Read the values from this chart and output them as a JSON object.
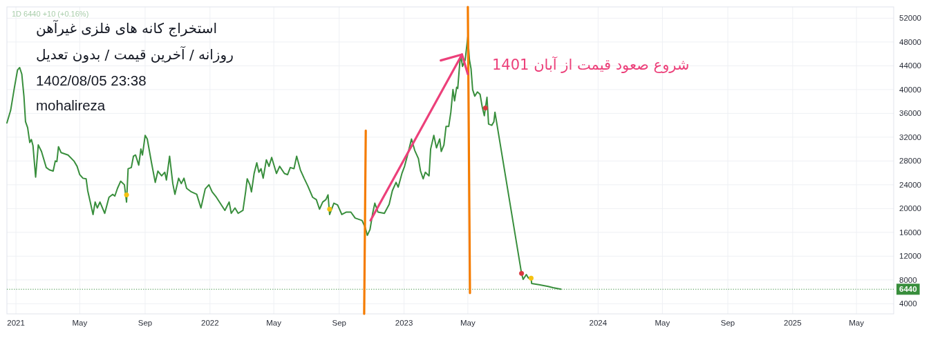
{
  "chart_data": {
    "type": "line",
    "title": "استخراج کانه های فلزی غیرآهن",
    "subtitle": "روزانه / آخرین قیمت / بدون تعدیل",
    "annotations": [
      "1402/08/05 23:38",
      "mohalireza",
      "شروع صعود قیمت از آبان 1401",
      "1D 6440 +10 (+0.16%)"
    ],
    "series": [
      {
        "color": "#388e3c",
        "x": [
          "2020-12-15",
          "2020-12-22",
          "2020-12-29",
          "2021-01-04",
          "2021-01-08",
          "2021-01-12",
          "2021-01-16",
          "2021-01-19",
          "2021-01-23",
          "2021-01-27",
          "2021-01-30",
          "2021-02-02",
          "2021-02-07",
          "2021-02-12",
          "2021-02-18",
          "2021-02-27",
          "2021-03-05",
          "2021-03-12",
          "2021-03-16",
          "2021-03-19",
          "2021-03-22",
          "2021-03-27",
          "2021-04-09",
          "2021-04-20",
          "2021-04-26",
          "2021-05-01",
          "2021-05-07",
          "2021-05-13",
          "2021-05-16",
          "2021-05-26",
          "2021-05-30",
          "2021-06-03",
          "2021-06-08",
          "2021-06-17",
          "2021-06-25",
          "2021-07-02",
          "2021-07-06",
          "2021-07-11",
          "2021-07-17",
          "2021-07-24",
          "2021-07-28",
          "2021-07-31",
          "2021-08-06",
          "2021-08-10",
          "2021-08-14",
          "2021-08-20",
          "2021-08-24",
          "2021-08-27",
          "2021-09-01",
          "2021-09-05",
          "2021-09-13",
          "2021-09-20",
          "2021-09-25",
          "2021-10-02",
          "2021-10-08",
          "2021-10-11",
          "2021-10-17",
          "2021-10-23",
          "2021-10-27",
          "2021-11-03",
          "2021-11-08",
          "2021-11-13",
          "2021-11-18",
          "2021-11-27",
          "2021-12-07",
          "2021-12-15",
          "2021-12-23",
          "2021-12-30",
          "2022-01-05",
          "2022-01-13",
          "2022-01-29",
          "2022-02-06",
          "2022-02-10",
          "2022-02-17",
          "2022-02-23",
          "2022-03-04",
          "2022-03-09",
          "2022-03-12",
          "2022-03-17",
          "2022-03-20",
          "2022-03-25",
          "2022-03-30",
          "2022-04-03",
          "2022-04-07",
          "2022-04-11",
          "2022-04-17",
          "2022-04-22",
          "2022-04-27",
          "2022-05-06",
          "2022-05-12",
          "2022-05-21",
          "2022-05-27",
          "2022-06-01",
          "2022-06-08",
          "2022-06-13",
          "2022-06-20",
          "2022-06-27",
          "2022-07-04",
          "2022-07-13",
          "2022-07-20",
          "2022-07-26",
          "2022-08-01",
          "2022-08-07",
          "2022-08-11",
          "2022-08-14",
          "2022-08-22",
          "2022-08-29",
          "2022-09-06",
          "2022-09-14",
          "2022-09-23",
          "2022-10-01",
          "2022-10-14",
          "2022-10-20",
          "2022-10-24",
          "2022-10-29",
          "2022-11-03",
          "2022-11-07",
          "2022-11-13",
          "2022-11-25",
          "2022-12-04",
          "2022-12-10",
          "2022-12-17",
          "2022-12-21",
          "2022-12-28",
          "2023-01-02",
          "2023-01-07",
          "2023-01-15",
          "2023-01-21",
          "2023-01-28",
          "2023-02-01",
          "2023-02-06",
          "2023-02-10",
          "2023-02-17",
          "2023-02-20",
          "2023-02-26",
          "2023-03-03",
          "2023-03-09",
          "2023-03-12",
          "2023-03-17",
          "2023-03-21",
          "2023-03-26",
          "2023-03-30",
          "2023-04-03",
          "2023-04-06",
          "2023-04-10",
          "2023-04-12",
          "2023-04-16",
          "2023-04-18",
          "2023-04-21",
          "2023-04-26",
          "2023-05-01",
          "2023-05-04",
          "2023-05-07",
          "2023-05-10",
          "2023-05-14",
          "2023-05-19",
          "2023-05-24",
          "2023-05-28",
          "2023-06-01",
          "2023-06-03",
          "2023-06-06",
          "2023-06-09",
          "2023-06-15",
          "2023-06-19",
          "2023-06-21",
          "2023-08-10",
          "2023-08-13",
          "2023-08-19",
          "2023-08-23",
          "2023-08-28",
          "2023-08-29",
          "2023-09-12",
          "2023-09-29",
          "2023-10-08",
          "2023-10-23"
        ],
        "values": [
          34400,
          36500,
          40300,
          43300,
          43700,
          42600,
          38900,
          34600,
          33600,
          31100,
          31600,
          30600,
          25300,
          30700,
          29600,
          26900,
          26500,
          26300,
          28000,
          27900,
          30400,
          29400,
          29000,
          28000,
          27100,
          25700,
          25100,
          25000,
          23000,
          19000,
          21100,
          20100,
          21100,
          19200,
          21900,
          22400,
          22100,
          23400,
          24600,
          24000,
          21100,
          26700,
          26900,
          28800,
          29000,
          27300,
          30000,
          29000,
          32300,
          31700,
          27700,
          24400,
          26300,
          25500,
          26100,
          24800,
          28800,
          24200,
          22400,
          25100,
          24200,
          25100,
          23400,
          22800,
          22400,
          20100,
          23300,
          24000,
          22800,
          21900,
          19700,
          21100,
          19200,
          20100,
          19200,
          19700,
          22800,
          25000,
          24000,
          22800,
          25900,
          27700,
          26100,
          26700,
          25100,
          28200,
          27100,
          28600,
          25900,
          27100,
          25900,
          25700,
          26900,
          26700,
          28800,
          26500,
          25100,
          23800,
          21900,
          21500,
          19900,
          21100,
          21500,
          22300,
          19000,
          20900,
          20600,
          19000,
          19400,
          19400,
          18400,
          18000,
          16800,
          15500,
          16500,
          19200,
          20900,
          19400,
          19200,
          20700,
          23000,
          24400,
          23600,
          25900,
          27100,
          28800,
          31700,
          29800,
          28400,
          26300,
          25000,
          26100,
          25500,
          30000,
          32300,
          30200,
          31700,
          29600,
          30700,
          33800,
          33800,
          36200,
          40000,
          38100,
          40400,
          40200,
          44700,
          45600,
          43900,
          45000,
          48900,
          45000,
          43500,
          40000,
          38900,
          39600,
          39200,
          37100,
          35600,
          36900,
          38700,
          34200,
          34000,
          34600,
          36200,
          9100,
          8100,
          8900,
          8300,
          8300,
          7400,
          7200,
          6900,
          6700,
          6440
        ]
      },
      {
        "color": "#f57c00",
        "x": [
          "2022-10-18",
          "2022-10-21"
        ],
        "values": [
          2300,
          33100
        ]
      },
      {
        "color": "#f57c00",
        "x": [
          "2023-05-01",
          "2023-05-05"
        ],
        "values": [
          53900,
          5800
        ]
      },
      {
        "color": "#ec407a",
        "x": [
          "2022-10-30",
          "2023-04-20"
        ],
        "values": [
          18000,
          45900
        ]
      },
      {
        "color": "#ec407a",
        "x": [
          "2023-03-11",
          "2023-04-20",
          "2023-05-01"
        ],
        "values": [
          44900,
          45900,
          42600
        ]
      },
      {
        "type": "scatter",
        "x": [
          "2021-07-28",
          "2022-08-14",
          "2023-06-03",
          "2023-08-10",
          "2023-08-28"
        ],
        "values": [
          22300,
          19900,
          36900,
          9100,
          8300
        ],
        "colors": [
          "#f5c211",
          "#f5c211",
          "#d9363e",
          "#d9363e",
          "#f5c211"
        ]
      }
    ],
    "xlim": [
      "2020-12-15",
      "2025-07-10"
    ],
    "xticks": [
      "2021",
      {
        "value": "2021-05",
        "label": "May"
      },
      {
        "value": "2021-09",
        "label": "Sep"
      },
      "2022",
      {
        "value": "2022-05",
        "label": "May"
      },
      {
        "value": "2022-09",
        "label": "Sep"
      },
      "2023",
      {
        "value": "2023-05",
        "label": "May"
      },
      "2024",
      {
        "value": "2024-05",
        "label": "May"
      },
      {
        "value": "2024-09",
        "label": "Sep"
      },
      "2025",
      {
        "value": "2025-05",
        "label": "May"
      }
    ],
    "ylim": [
      2300,
      53900
    ],
    "yticks": [
      4000,
      8000,
      12000,
      16000,
      20000,
      24000,
      28000,
      32000,
      36000,
      40000,
      44000,
      48000,
      52000
    ],
    "grid": true,
    "ref_lines": [
      {
        "axis": "y",
        "value": 6440,
        "label": "6440",
        "color": "#388e3c",
        "line_style": "dotted"
      }
    ]
  }
}
